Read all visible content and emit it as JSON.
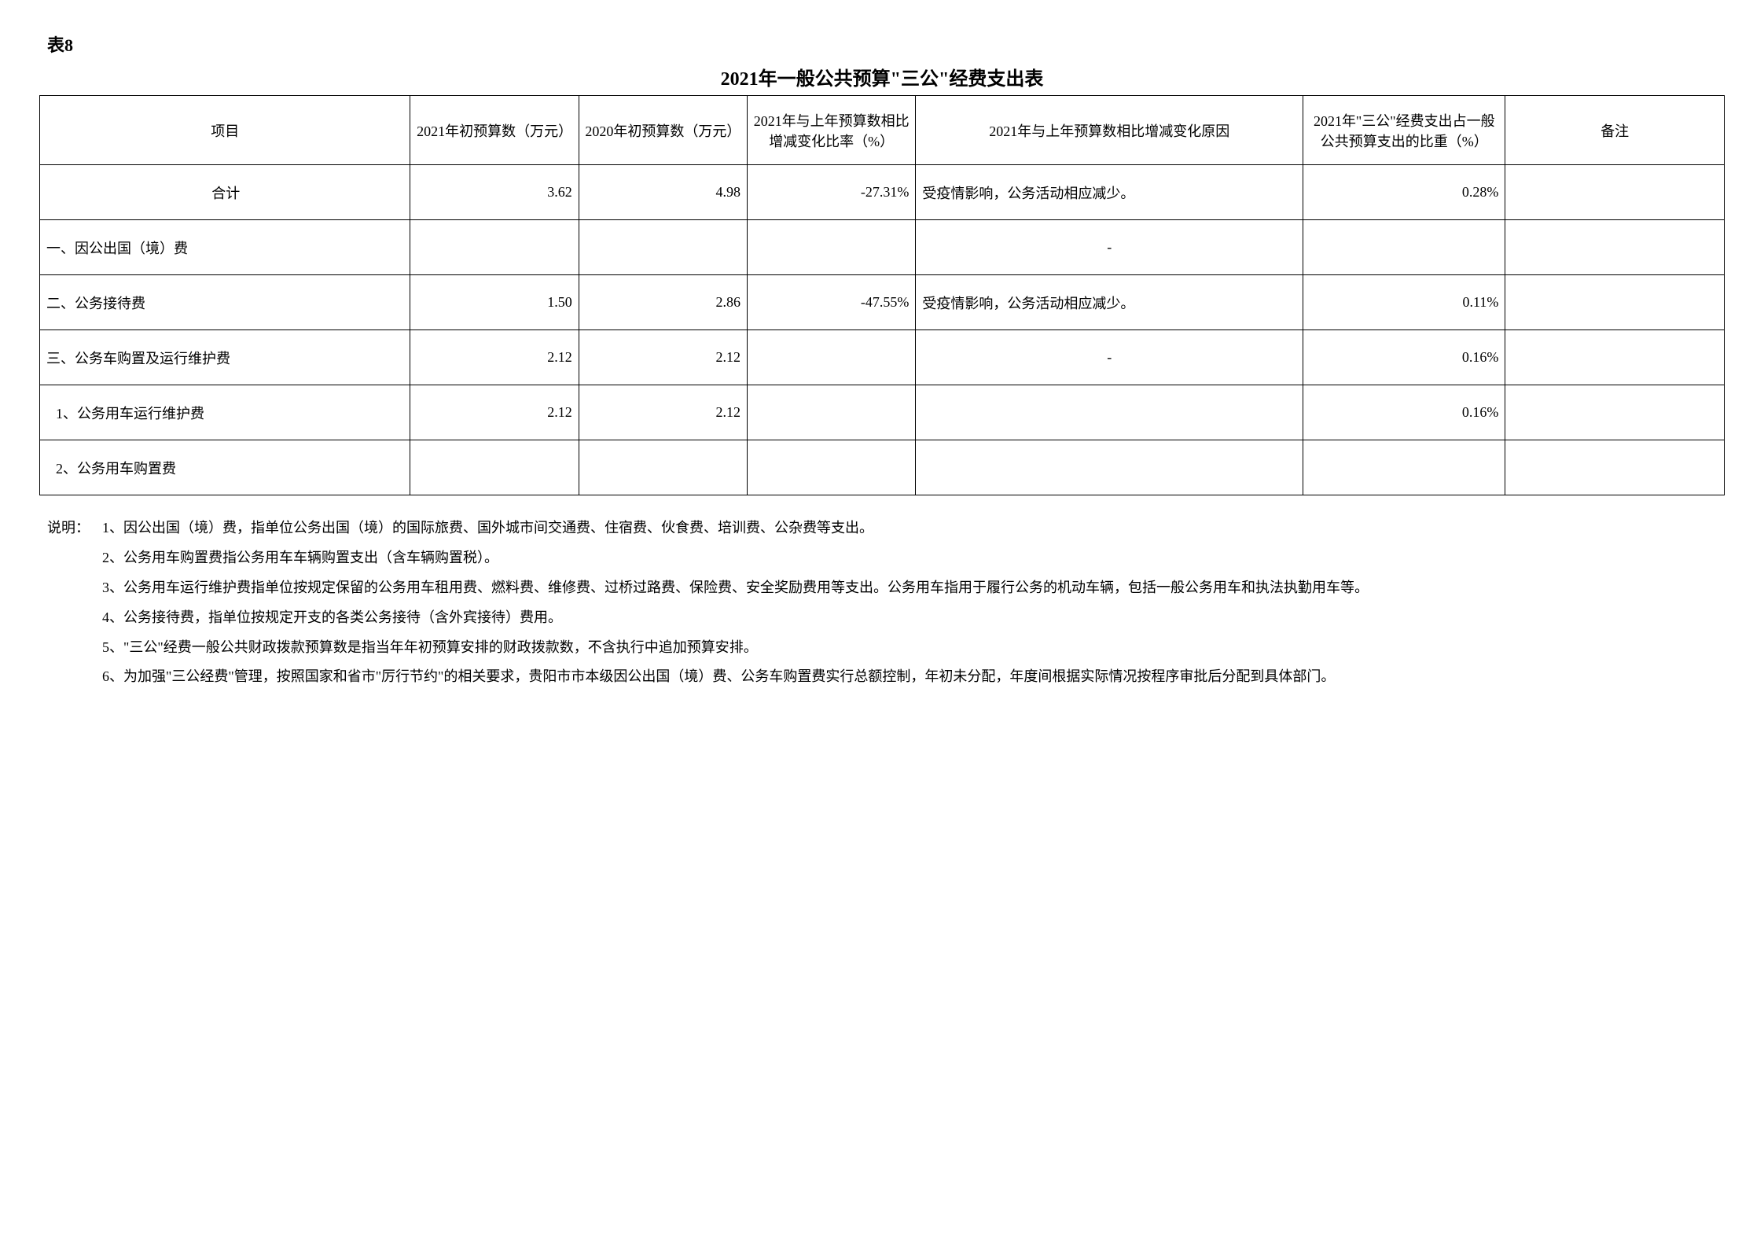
{
  "tableLabel": "表8",
  "tableTitle": "2021年一般公共预算\"三公\"经费支出表",
  "columns": {
    "item": "项目",
    "budget2021": "2021年初预算数（万元）",
    "budget2020": "2020年初预算数（万元）",
    "changeRate": "2021年与上年预算数相比增减变化比率（%）",
    "reason": "2021年与上年预算数相比增减变化原因",
    "share": "2021年\"三公\"经费支出占一般公共预算支出的比重（%）",
    "remark": "备注"
  },
  "rows": [
    {
      "item": "合计",
      "b2021": "3.62",
      "b2020": "4.98",
      "rate": "-27.31%",
      "reason": "受疫情影响，公务活动相应减少。",
      "share": "0.28%",
      "remark": "",
      "indent": false,
      "isTotal": true
    },
    {
      "item": "一、因公出国（境）费",
      "b2021": "",
      "b2020": "",
      "rate": "",
      "reason": "-",
      "share": "",
      "remark": "",
      "indent": false,
      "isTotal": false
    },
    {
      "item": "二、公务接待费",
      "b2021": "1.50",
      "b2020": "2.86",
      "rate": "-47.55%",
      "reason": "受疫情影响，公务活动相应减少。",
      "share": "0.11%",
      "remark": "",
      "indent": false,
      "isTotal": false
    },
    {
      "item": "三、公务车购置及运行维护费",
      "b2021": "2.12",
      "b2020": "2.12",
      "rate": "",
      "reason": "-",
      "share": "0.16%",
      "remark": "",
      "indent": false,
      "isTotal": false
    },
    {
      "item": "1、公务用车运行维护费",
      "b2021": "2.12",
      "b2020": "2.12",
      "rate": "",
      "reason": "",
      "share": "0.16%",
      "remark": "",
      "indent": true,
      "isTotal": false
    },
    {
      "item": "2、公务用车购置费",
      "b2021": "",
      "b2020": "",
      "rate": "",
      "reason": "",
      "share": "",
      "remark": "",
      "indent": true,
      "isTotal": false
    }
  ],
  "notesLabel": "说明：",
  "notes": [
    "1、因公出国（境）费，指单位公务出国（境）的国际旅费、国外城市间交通费、住宿费、伙食费、培训费、公杂费等支出。",
    "2、公务用车购置费指公务用车车辆购置支出（含车辆购置税）。",
    "3、公务用车运行维护费指单位按规定保留的公务用车租用费、燃料费、维修费、过桥过路费、保险费、安全奖励费用等支出。公务用车指用于履行公务的机动车辆，包括一般公务用车和执法执勤用车等。",
    "4、公务接待费，指单位按规定开支的各类公务接待（含外宾接待）费用。",
    "5、\"三公\"经费一般公共财政拨款预算数是指当年年初预算安排的财政拨款数，不含执行中追加预算安排。",
    "6、为加强\"三公经费\"管理，按照国家和省市\"厉行节约\"的相关要求，贵阳市市本级因公出国（境）费、公务车购置费实行总额控制，年初未分配，年度间根据实际情况按程序审批后分配到具体部门。"
  ]
}
